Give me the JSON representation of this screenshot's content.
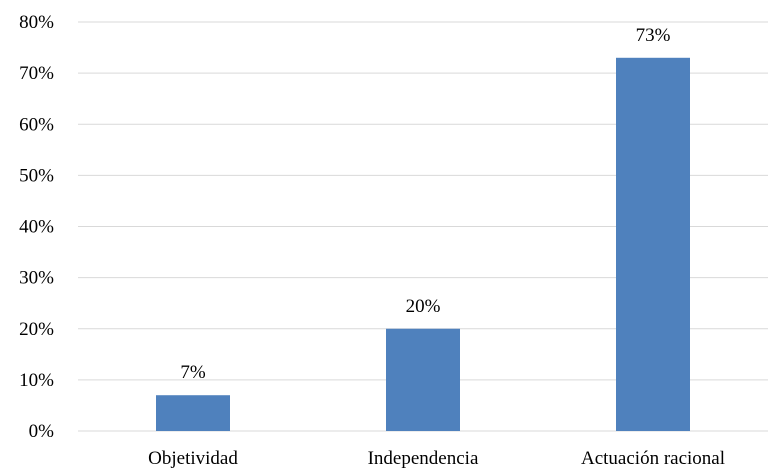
{
  "chart_data": {
    "type": "bar",
    "categories": [
      "Objetividad",
      "Independencia",
      "Actuación racional"
    ],
    "values": [
      7,
      20,
      73
    ],
    "data_labels": [
      "7%",
      "20%",
      "73%"
    ],
    "ylim": [
      0,
      80
    ],
    "yticks": [
      0,
      10,
      20,
      30,
      40,
      50,
      60,
      70,
      80
    ],
    "ytick_labels": [
      "0%",
      "10%",
      "20%",
      "30%",
      "40%",
      "50%",
      "60%",
      "70%",
      "80%"
    ],
    "grid": true,
    "legend": "none",
    "bar_color": "#4F81BD",
    "grid_color": "#D9D9D9"
  }
}
